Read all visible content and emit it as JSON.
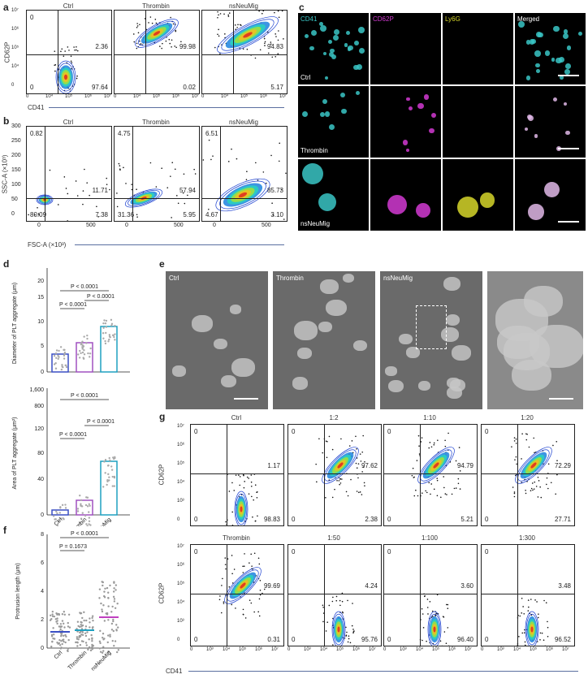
{
  "panel_labels": {
    "a": "a",
    "b": "b",
    "c": "c",
    "d": "d",
    "e": "e",
    "f": "f",
    "g": "g"
  },
  "panel_a": {
    "conditions": [
      "Ctrl",
      "Thrombin",
      "nsNeuMig"
    ],
    "ylabel": "CD62P",
    "xlabel": "CD41",
    "quadrants": [
      {
        "ul": "0",
        "ur": "2.36",
        "ll": "0",
        "lr": "97.64"
      },
      {
        "ul": "",
        "ur": "99.98",
        "ll": "",
        "lr": "0.02"
      },
      {
        "ul": "",
        "ur": "94.83",
        "ll": "",
        "lr": "5.17"
      }
    ],
    "xticks": [
      "0",
      "10⁴",
      "10⁵",
      "10⁶",
      "10⁷"
    ],
    "yticks": [
      "10⁷",
      "10⁶",
      "10⁵",
      "10⁴",
      "0"
    ]
  },
  "panel_b": {
    "conditions": [
      "Ctrl",
      "Thrombin",
      "nsNeuMig"
    ],
    "ylabel": "SSC-A (×10³)",
    "xlabel": "FSC-A (×10³)",
    "quadrants": [
      {
        "ul": "0.82",
        "ur": "11.71",
        "ll": "80.09",
        "lr": "7.38"
      },
      {
        "ul": "4.75",
        "ur": "57.94",
        "ll": "31.36",
        "lr": "5.95"
      },
      {
        "ul": "6.51",
        "ur": "85.73",
        "ll": "4.67",
        "lr": "3.10"
      }
    ],
    "yticks": [
      "300",
      "250",
      "200",
      "150",
      "100",
      "50",
      "0"
    ],
    "xticks": [
      "0",
      "500"
    ]
  },
  "panel_c": {
    "columns": [
      "CD41",
      "CD62P",
      "Ly6G",
      "Merged"
    ],
    "column_colors": [
      "#39c6c6",
      "#d23ad2",
      "#d6d62a",
      "#ffffff"
    ],
    "rows": [
      "Ctrl",
      "Thrombin",
      "nsNeuMig"
    ]
  },
  "panel_d": {
    "top": {
      "ylabel": "Diameter of PLT aggregate (μm)",
      "yticks": [
        "20",
        "15",
        "10",
        "5",
        "0"
      ],
      "p_values": [
        "P < 0.0001",
        "P < 0.0001",
        "P < 0.0001"
      ]
    },
    "bottom": {
      "ylabel": "Area of PLT aggregate (μm²)",
      "yticks": [
        "1,600",
        "800",
        "120",
        "80",
        "40",
        "0"
      ],
      "p_values": [
        "P < 0.0001",
        "P < 0.0001",
        "P < 0.0001"
      ]
    },
    "categories": [
      "Ctrl",
      "Thrombin",
      "nsNeuMig"
    ],
    "bar_colors": [
      "#3a4fc4",
      "#a050c0",
      "#1fa0c0"
    ]
  },
  "panel_e": {
    "labels": [
      "Ctrl",
      "Thrombin",
      "nsNeuMig"
    ]
  },
  "panel_f": {
    "ylabel": "Protrusion length (μm)",
    "yticks": [
      "8",
      "6",
      "4",
      "2",
      "0"
    ],
    "categories": [
      "Ctrl",
      "Thrombin",
      "nsNeuMig"
    ],
    "p_values": [
      "P < 0.0001",
      "P = 0.1673"
    ]
  },
  "panel_g": {
    "row1": [
      "Ctrl",
      "1:2",
      "1:10",
      "1:20"
    ],
    "row2": [
      "Thrombin",
      "1:50",
      "1:100",
      "1:300"
    ],
    "ylabel": "CD62P",
    "xlabel": "CD41",
    "quadrants_row1": [
      {
        "ul": "0",
        "ur": "1.17",
        "ll": "0",
        "lr": "98.83"
      },
      {
        "ul": "0",
        "ur": "97.62",
        "ll": "0",
        "lr": "2.38"
      },
      {
        "ul": "0",
        "ur": "94.79",
        "ll": "0",
        "lr": "5.21"
      },
      {
        "ul": "0",
        "ur": "72.29",
        "ll": "0",
        "lr": "27.71"
      }
    ],
    "quadrants_row2": [
      {
        "ul": "0",
        "ur": "99.69",
        "ll": "0",
        "lr": "0.31"
      },
      {
        "ul": "0",
        "ur": "4.24",
        "ll": "0",
        "lr": "95.76"
      },
      {
        "ul": "0",
        "ur": "3.60",
        "ll": "0",
        "lr": "96.40"
      },
      {
        "ul": "0",
        "ur": "3.48",
        "ll": "0",
        "lr": "96.52"
      }
    ],
    "yticks": [
      "10⁷",
      "10⁶",
      "10⁵",
      "10⁴",
      "10³",
      "0"
    ],
    "xticks": [
      "0",
      "10³",
      "10⁴",
      "10⁵",
      "10⁶",
      "10⁷"
    ]
  },
  "colors": {
    "axis_arrow": "#5a6fa0",
    "contour": "#1a3fd0"
  }
}
